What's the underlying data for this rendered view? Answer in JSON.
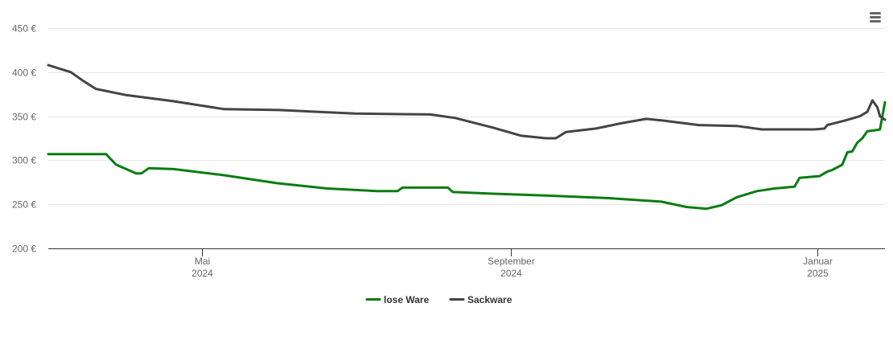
{
  "colors": {
    "background": "#ffffff",
    "gridline": "#e6e6e6",
    "axis": "#333333",
    "tick_text": "#666666"
  },
  "menu": {
    "icon": "hamburger-menu-icon"
  },
  "chart_data": {
    "type": "line",
    "title": "",
    "xlabel": "",
    "ylabel": "",
    "x_range": [
      "2024-03-01",
      "2025-01-28"
    ],
    "ylim": [
      200,
      450
    ],
    "grid": true,
    "legend_placement": "bottom-center",
    "y_ticks": [
      {
        "value": 200,
        "label": "200 €"
      },
      {
        "value": 250,
        "label": "250 €"
      },
      {
        "value": 300,
        "label": "300 €"
      },
      {
        "value": 350,
        "label": "350 €"
      },
      {
        "value": 400,
        "label": "400 €"
      },
      {
        "value": 450,
        "label": "450 €"
      }
    ],
    "x_ticks": [
      {
        "date": "2024-05-01",
        "label": "Mai",
        "year": "2024"
      },
      {
        "date": "2024-09-01",
        "label": "September",
        "year": "2024"
      },
      {
        "date": "2025-01-01",
        "label": "Januar",
        "year": "2025"
      }
    ],
    "series": [
      {
        "name": "lose Ware",
        "color": "#0a7c12",
        "points": [
          [
            "2024-03-01",
            307
          ],
          [
            "2024-03-15",
            307
          ],
          [
            "2024-03-24",
            307
          ],
          [
            "2024-03-28",
            295
          ],
          [
            "2024-04-05",
            285
          ],
          [
            "2024-04-07",
            285
          ],
          [
            "2024-04-10",
            291
          ],
          [
            "2024-04-20",
            290
          ],
          [
            "2024-05-10",
            283
          ],
          [
            "2024-05-31",
            274
          ],
          [
            "2024-06-20",
            268
          ],
          [
            "2024-07-10",
            265
          ],
          [
            "2024-07-18",
            265
          ],
          [
            "2024-07-20",
            269
          ],
          [
            "2024-07-25",
            269
          ],
          [
            "2024-08-07",
            269
          ],
          [
            "2024-08-09",
            264
          ],
          [
            "2024-08-25",
            262
          ],
          [
            "2024-09-15",
            260
          ],
          [
            "2024-10-10",
            257
          ],
          [
            "2024-10-31",
            253
          ],
          [
            "2024-11-10",
            247
          ],
          [
            "2024-11-18",
            245
          ],
          [
            "2024-11-24",
            249
          ],
          [
            "2024-11-30",
            258
          ],
          [
            "2024-12-08",
            265
          ],
          [
            "2024-12-15",
            268
          ],
          [
            "2024-12-23",
            270
          ],
          [
            "2024-12-25",
            280
          ],
          [
            "2025-01-02",
            282
          ],
          [
            "2025-01-05",
            287
          ],
          [
            "2025-01-07",
            289
          ],
          [
            "2025-01-11",
            295
          ],
          [
            "2025-01-13",
            309
          ],
          [
            "2025-01-15",
            310
          ],
          [
            "2025-01-17",
            320
          ],
          [
            "2025-01-19",
            325
          ],
          [
            "2025-01-21",
            333
          ],
          [
            "2025-01-24",
            334
          ],
          [
            "2025-01-26",
            335
          ],
          [
            "2025-01-28",
            366
          ]
        ]
      },
      {
        "name": "Sackware",
        "color": "#434348",
        "points": [
          [
            "2024-03-01",
            408
          ],
          [
            "2024-03-10",
            400
          ],
          [
            "2024-03-15",
            390
          ],
          [
            "2024-03-20",
            381
          ],
          [
            "2024-04-01",
            374
          ],
          [
            "2024-04-20",
            367
          ],
          [
            "2024-05-10",
            358
          ],
          [
            "2024-06-01",
            357
          ],
          [
            "2024-07-01",
            353
          ],
          [
            "2024-07-31",
            352
          ],
          [
            "2024-08-10",
            348
          ],
          [
            "2024-08-25",
            337
          ],
          [
            "2024-09-05",
            328
          ],
          [
            "2024-09-15",
            325
          ],
          [
            "2024-09-19",
            325
          ],
          [
            "2024-09-23",
            332
          ],
          [
            "2024-10-05",
            336
          ],
          [
            "2024-10-15",
            342
          ],
          [
            "2024-10-25",
            347
          ],
          [
            "2024-11-01",
            345
          ],
          [
            "2024-11-15",
            340
          ],
          [
            "2024-11-30",
            339
          ],
          [
            "2024-12-10",
            335
          ],
          [
            "2024-12-31",
            335
          ],
          [
            "2025-01-04",
            336
          ],
          [
            "2025-01-05",
            340
          ],
          [
            "2025-01-12",
            345
          ],
          [
            "2025-01-18",
            350
          ],
          [
            "2025-01-21",
            355
          ],
          [
            "2025-01-23",
            368
          ],
          [
            "2025-01-25",
            360
          ],
          [
            "2025-01-26",
            350
          ],
          [
            "2025-01-28",
            346
          ]
        ]
      }
    ]
  }
}
